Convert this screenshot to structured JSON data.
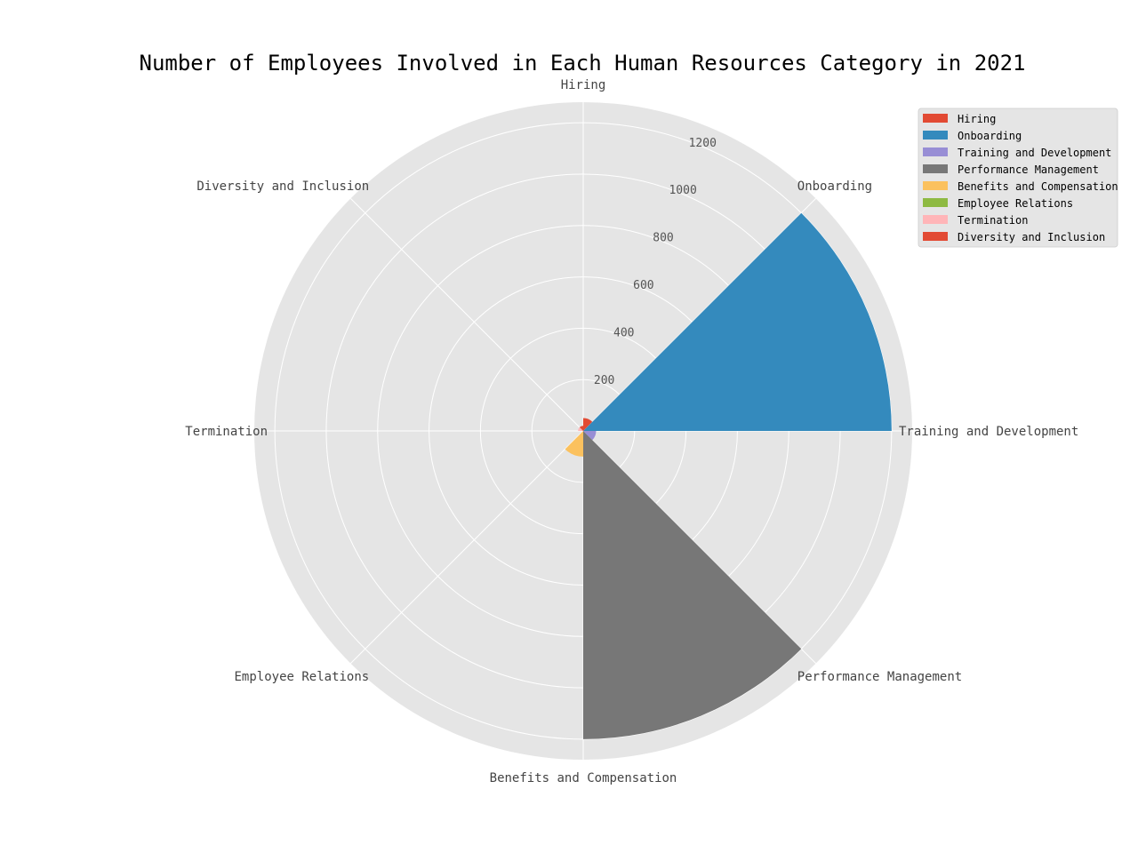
{
  "chart_data": {
    "type": "polar-bar",
    "title": "Number of Employees Involved in Each Human Resources Category in 2021",
    "categories": [
      "Hiring",
      "Onboarding",
      "Training and Development",
      "Performance Management",
      "Benefits and Compensation",
      "Employee Relations",
      "Termination",
      "Diversity and Inclusion"
    ],
    "values": [
      50,
      1200,
      50,
      1200,
      100,
      0,
      20,
      20
    ],
    "colors": [
      "#E24A33",
      "#348ABD",
      "#988ED5",
      "#777777",
      "#FBC15E",
      "#8EBA42",
      "#FFB5B8",
      "#E24A33"
    ],
    "r_ticks": [
      200,
      400,
      600,
      800,
      1000,
      1200
    ],
    "r_max": 1280,
    "grid": true,
    "legend_position": "top-right"
  }
}
